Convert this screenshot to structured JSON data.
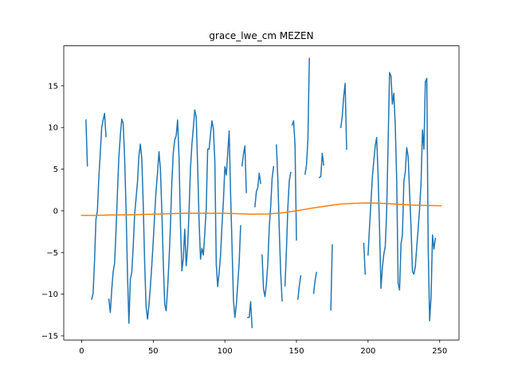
{
  "chart_data": {
    "type": "line",
    "title": "grace_lwe_cm MEZEN",
    "xlabel": "",
    "ylabel": "",
    "xlim": [
      -12.5,
      263.5
    ],
    "ylim": [
      -15.5,
      19.8
    ],
    "xticks": [
      0,
      50,
      100,
      150,
      200,
      250
    ],
    "yticks": [
      -15,
      -10,
      -5,
      0,
      5,
      10,
      15
    ],
    "grid": false,
    "series": [
      {
        "color": "#1f77b4",
        "segments": [
          [
            [
              3,
              10.9
            ],
            [
              4,
              5.4
            ]
          ],
          [
            [
              7,
              -10.6
            ],
            [
              8,
              -9.9
            ],
            [
              9,
              -6.0
            ],
            [
              10,
              -1.0
            ],
            [
              11,
              0.0
            ],
            [
              12,
              4.0
            ],
            [
              13,
              6.9
            ],
            [
              14,
              10.0
            ],
            [
              15,
              10.9
            ],
            [
              16,
              11.7
            ],
            [
              17,
              8.9
            ]
          ],
          [
            [
              19,
              -10.6
            ],
            [
              20,
              -12.2
            ],
            [
              21,
              -9.5
            ],
            [
              22,
              -7.3
            ],
            [
              23,
              -6.3
            ],
            [
              24,
              -2.4
            ],
            [
              25,
              2.2
            ],
            [
              26,
              6.5
            ],
            [
              27,
              9.0
            ],
            [
              28,
              11.0
            ],
            [
              29,
              10.5
            ],
            [
              30,
              6.4
            ],
            [
              31,
              0.3
            ],
            [
              32,
              -7.5
            ],
            [
              33,
              -13.5
            ],
            [
              34,
              -8.2
            ],
            [
              35,
              -7.4
            ],
            [
              36,
              -4.3
            ],
            [
              37,
              -0.4
            ],
            [
              38,
              1.5
            ],
            [
              39,
              3.5
            ],
            [
              40,
              6.6
            ],
            [
              41,
              8.0
            ],
            [
              42,
              6.3
            ],
            [
              43,
              0.8
            ],
            [
              44,
              -6.3
            ],
            [
              45,
              -11.5
            ],
            [
              46,
              -13.0
            ],
            [
              47,
              -11.3
            ],
            [
              48,
              -9.1
            ],
            [
              49,
              -6.5
            ],
            [
              50,
              -3.6
            ],
            [
              51,
              -0.4
            ],
            [
              52,
              2.5
            ],
            [
              53,
              4.6
            ],
            [
              54,
              7.1
            ],
            [
              55,
              5.0
            ],
            [
              56,
              0.0
            ],
            [
              57,
              -6.2
            ],
            [
              58,
              -11.2
            ],
            [
              59,
              -12.0
            ],
            [
              60,
              -9.4
            ],
            [
              61,
              -6.0
            ],
            [
              62,
              -1.8
            ],
            [
              63,
              3.5
            ],
            [
              64,
              7.0
            ],
            [
              65,
              8.5
            ],
            [
              66,
              9.0
            ],
            [
              67,
              10.9
            ],
            [
              68,
              6.4
            ],
            [
              69,
              -1.6
            ],
            [
              70,
              -7.2
            ],
            [
              71,
              -5.7
            ],
            [
              72,
              -2.2
            ],
            [
              73,
              -6.6
            ],
            [
              74,
              -4.4
            ],
            [
              75,
              0.0
            ],
            [
              76,
              5.1
            ],
            [
              77,
              8.0
            ],
            [
              78,
              10.0
            ],
            [
              79,
              12.1
            ],
            [
              80,
              11.3
            ],
            [
              81,
              5.3
            ],
            [
              82,
              -1.2
            ],
            [
              83,
              -5.8
            ],
            [
              84,
              -4.5
            ],
            [
              85,
              -5.3
            ],
            [
              86,
              -2.6
            ],
            [
              87,
              0.3
            ],
            [
              88,
              7.4
            ],
            [
              89,
              7.4
            ],
            [
              90,
              9.2
            ],
            [
              91,
              10.8
            ],
            [
              92,
              9.8
            ],
            [
              93,
              6.0
            ],
            [
              94,
              -6.4
            ],
            [
              95,
              -9.1
            ],
            [
              96,
              -7.4
            ],
            [
              97,
              -5.3
            ],
            [
              98,
              -1.7
            ],
            [
              99,
              1.2
            ],
            [
              100,
              5.3
            ],
            [
              101,
              4.3
            ],
            [
              102,
              6.9
            ],
            [
              103,
              9.6
            ],
            [
              104,
              2.1
            ],
            [
              105,
              -4.2
            ],
            [
              106,
              -10.7
            ],
            [
              107,
              -12.8
            ],
            [
              108,
              -11.3
            ],
            [
              109,
              -8.8
            ],
            [
              110,
              -6.2
            ],
            [
              111,
              -1.8
            ]
          ],
          [
            [
              112,
              5.4
            ],
            [
              113,
              6.8
            ],
            [
              114,
              7.8
            ],
            [
              115,
              2.2
            ]
          ],
          [
            [
              116,
              -12.8
            ],
            [
              117,
              -12.8
            ],
            [
              118,
              -10.9
            ],
            [
              119,
              -14.0
            ]
          ],
          [
            [
              121,
              0.5
            ],
            [
              122,
              2.3
            ],
            [
              123,
              2.8
            ],
            [
              124,
              4.5
            ],
            [
              125,
              3.3
            ]
          ],
          [
            [
              126,
              -5.3
            ],
            [
              127,
              -9.4
            ],
            [
              128,
              -10.3
            ],
            [
              129,
              -8.8
            ],
            [
              130,
              -6.3
            ],
            [
              131,
              -2.0
            ],
            [
              132,
              0.5
            ],
            [
              133,
              3.9
            ],
            [
              134,
              5.3
            ]
          ],
          [
            [
              136,
              7.9
            ],
            [
              137,
              3.8
            ],
            [
              138,
              -2.3
            ],
            [
              139,
              -7.5
            ],
            [
              140,
              -10.8
            ]
          ],
          [
            [
              142,
              -9.0
            ],
            [
              143,
              -4.7
            ],
            [
              144,
              0.5
            ],
            [
              145,
              3.6
            ],
            [
              146,
              4.6
            ]
          ],
          [
            [
              147,
              10.3
            ],
            [
              148,
              10.8
            ],
            [
              149,
              7.9
            ],
            [
              150,
              -3.5
            ]
          ],
          [
            [
              151,
              -10.6
            ],
            [
              152,
              -9.0
            ],
            [
              153,
              -7.8
            ]
          ],
          [
            [
              156,
              4.4
            ],
            [
              157,
              5.5
            ],
            [
              158,
              8.6
            ],
            [
              159,
              18.3
            ]
          ],
          [
            [
              162,
              -9.9
            ],
            [
              163,
              -8.4
            ],
            [
              164,
              -7.4
            ]
          ],
          [
            [
              166,
              4.0
            ],
            [
              167,
              4.1
            ],
            [
              168,
              6.9
            ],
            [
              169,
              5.5
            ]
          ],
          [
            [
              174,
              -11.9
            ],
            [
              175,
              -4.1
            ]
          ],
          [
            [
              181,
              10.0
            ],
            [
              182,
              11.4
            ],
            [
              183,
              13.7
            ],
            [
              184,
              15.3
            ],
            [
              185,
              7.4
            ]
          ],
          [
            [
              197,
              -3.9
            ],
            [
              198,
              -7.6
            ]
          ],
          [
            [
              200,
              -5.3
            ],
            [
              201,
              -2.0
            ],
            [
              202,
              1.0
            ],
            [
              203,
              4.0
            ],
            [
              204,
              6.0
            ],
            [
              205,
              7.8
            ],
            [
              206,
              8.8
            ],
            [
              207,
              4.3
            ],
            [
              208,
              -2.0
            ],
            [
              209,
              -9.3
            ],
            [
              210,
              -6.8
            ],
            [
              211,
              -5.2
            ],
            [
              212,
              -4.3
            ],
            [
              213,
              0.0
            ],
            [
              214,
              8.0
            ],
            [
              215,
              16.6
            ],
            [
              216,
              16.2
            ],
            [
              217,
              12.8
            ],
            [
              218,
              14.1
            ],
            [
              219,
              10.2
            ],
            [
              220,
              3.6
            ],
            [
              221,
              -8.7
            ],
            [
              222,
              -9.5
            ],
            [
              223,
              -4.0
            ],
            [
              224,
              -2.9
            ],
            [
              225,
              3.5
            ],
            [
              226,
              4.7
            ],
            [
              227,
              7.6
            ],
            [
              228,
              6.5
            ],
            [
              229,
              2.2
            ],
            [
              230,
              -2.0
            ],
            [
              231,
              -7.3
            ],
            [
              232,
              -7.6
            ],
            [
              233,
              -6.7
            ],
            [
              234,
              -4.3
            ],
            [
              235,
              -2.1
            ],
            [
              236,
              0.3
            ],
            [
              237,
              3.4
            ],
            [
              238,
              9.7
            ],
            [
              239,
              7.4
            ],
            [
              240,
              15.5
            ],
            [
              241,
              15.9
            ],
            [
              242,
              -4.6
            ],
            [
              243,
              -13.2
            ],
            [
              244,
              -10.3
            ],
            [
              245,
              -2.9
            ],
            [
              246,
              -4.6
            ],
            [
              247,
              -3.3
            ]
          ]
        ]
      },
      {
        "color": "#ff7f0e",
        "segments": [
          [
            [
              0,
              -0.55
            ],
            [
              10,
              -0.55
            ],
            [
              20,
              -0.5
            ],
            [
              30,
              -0.48
            ],
            [
              40,
              -0.45
            ],
            [
              50,
              -0.4
            ],
            [
              60,
              -0.35
            ],
            [
              70,
              -0.3
            ],
            [
              80,
              -0.28
            ],
            [
              90,
              -0.3
            ],
            [
              100,
              -0.3
            ],
            [
              110,
              -0.35
            ],
            [
              120,
              -0.4
            ],
            [
              130,
              -0.38
            ],
            [
              140,
              -0.25
            ],
            [
              150,
              0.0
            ],
            [
              160,
              0.3
            ],
            [
              170,
              0.55
            ],
            [
              180,
              0.8
            ],
            [
              190,
              0.9
            ],
            [
              200,
              0.95
            ],
            [
              210,
              0.9
            ],
            [
              220,
              0.8
            ],
            [
              230,
              0.7
            ],
            [
              240,
              0.65
            ],
            [
              251,
              0.6
            ]
          ]
        ]
      }
    ]
  }
}
